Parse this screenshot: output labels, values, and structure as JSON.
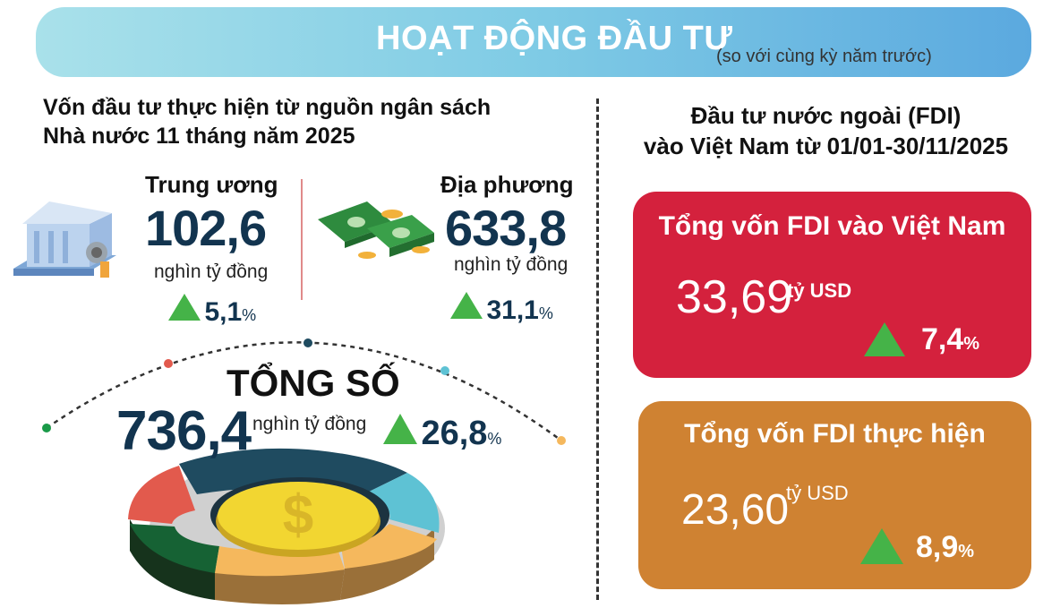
{
  "header": {
    "title": "HOẠT ĐỘNG ĐẦU TƯ",
    "subtitle": "(so với cùng kỳ năm trước)"
  },
  "budget": {
    "title_line1": "Vốn đầu tư thực hiện từ nguồn ngân sách",
    "title_line2": "Nhà nước 11 tháng năm 2025",
    "central": {
      "label": "Trung ương",
      "value": "102,6",
      "unit": "nghìn tỷ đồng",
      "change": "5,1",
      "pct": "%"
    },
    "local": {
      "label": "Địa phương",
      "value": "633,8",
      "unit": "nghìn tỷ đồng",
      "change": "31,1",
      "pct": "%"
    },
    "total": {
      "label": "TỔNG SỐ",
      "value": "736,4",
      "unit": "nghìn tỷ đồng",
      "change": "26,8",
      "pct": "%"
    }
  },
  "fdi": {
    "title_line1": "Đầu tư nước ngoài (FDI)",
    "title_line2": "vào Việt Nam từ 01/01-30/11/2025",
    "registered": {
      "label": "Tổng vốn FDI vào Việt Nam",
      "value": "33,69",
      "unit": "tỷ USD",
      "change": "7,4",
      "pct": "%",
      "color": "#d4213d"
    },
    "disbursed": {
      "label": "Tổng vốn FDI thực hiện",
      "value": "23,60",
      "unit": "tỷ USD",
      "change": "8,9",
      "pct": "%",
      "color": "#cf8232"
    }
  },
  "colors": {
    "navy": "#12344f",
    "up": "#45b348"
  }
}
